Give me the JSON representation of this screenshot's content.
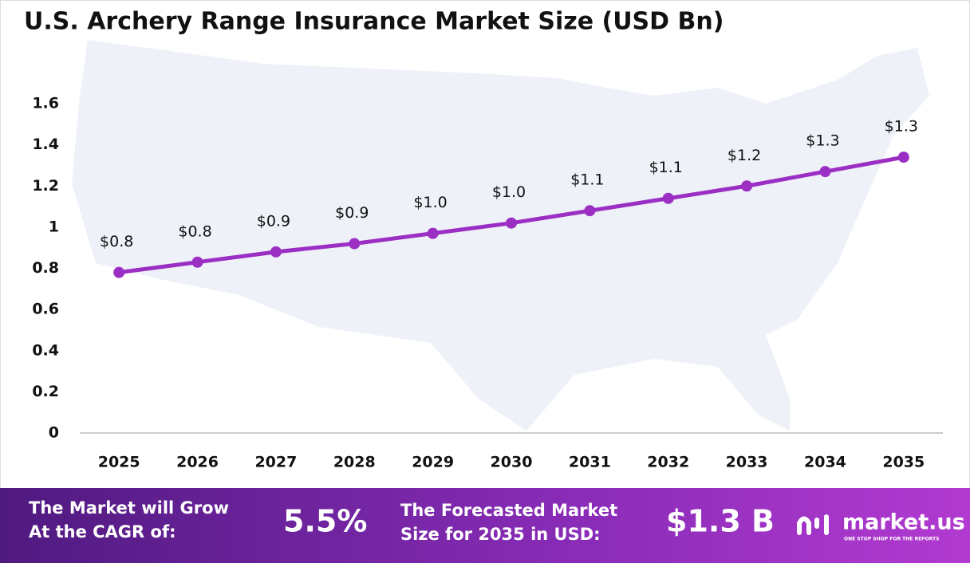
{
  "chart_data": {
    "type": "line",
    "title": "U.S. Archery Range Insurance Market Size (USD Bn)",
    "categories": [
      "2025",
      "2026",
      "2027",
      "2028",
      "2029",
      "2030",
      "2031",
      "2032",
      "2033",
      "2034",
      "2035"
    ],
    "series": [
      {
        "color": "#9b2fc4",
        "values": [
          0.78,
          0.83,
          0.88,
          0.92,
          0.97,
          1.02,
          1.08,
          1.14,
          1.2,
          1.27,
          1.34
        ],
        "value_labels": [
          "$0.8",
          "$0.8",
          "$0.9",
          "$0.9",
          "$1.0",
          "$1.0",
          "$1.1",
          "$1.1",
          "$1.2",
          "$1.3",
          "$1.3"
        ]
      }
    ],
    "ylim": [
      0,
      1.6
    ],
    "yticks": [
      0,
      0.2,
      0.4,
      0.6,
      0.8,
      1,
      1.2,
      1.4,
      1.6
    ],
    "grid": false
  },
  "footer": {
    "cagr_label": [
      "The Market will Grow",
      "At the CAGR of:"
    ],
    "cagr_value": "5.5%",
    "forecast_label": [
      "The Forecasted Market",
      "Size for 2035 in USD:"
    ],
    "forecast_value": "$1.3 B",
    "logo": "market.us",
    "tagline": "ONE STOP SHOP FOR THE REPORTS"
  }
}
